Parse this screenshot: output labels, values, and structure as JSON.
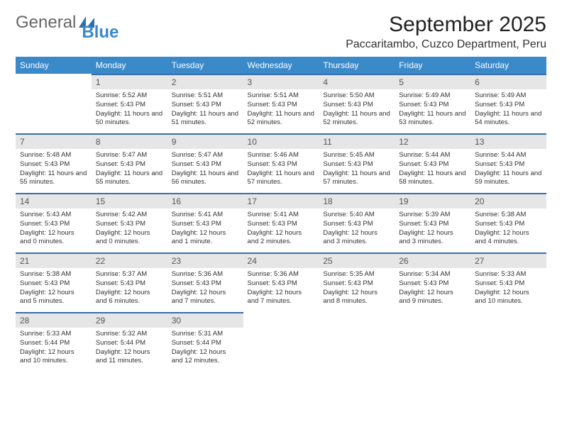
{
  "brand": {
    "part1": "General",
    "part2": "Blue"
  },
  "header": {
    "month_title": "September 2025",
    "location": "Paccaritambo, Cuzco Department, Peru"
  },
  "colors": {
    "header_bg": "#3a89c9",
    "daynum_bg": "#e6e6e6",
    "row_border": "#3a6ea8"
  },
  "weekdays": [
    "Sunday",
    "Monday",
    "Tuesday",
    "Wednesday",
    "Thursday",
    "Friday",
    "Saturday"
  ],
  "weeks": [
    [
      null,
      {
        "n": "1",
        "sunrise": "Sunrise: 5:52 AM",
        "sunset": "Sunset: 5:43 PM",
        "daylight": "Daylight: 11 hours and 50 minutes."
      },
      {
        "n": "2",
        "sunrise": "Sunrise: 5:51 AM",
        "sunset": "Sunset: 5:43 PM",
        "daylight": "Daylight: 11 hours and 51 minutes."
      },
      {
        "n": "3",
        "sunrise": "Sunrise: 5:51 AM",
        "sunset": "Sunset: 5:43 PM",
        "daylight": "Daylight: 11 hours and 52 minutes."
      },
      {
        "n": "4",
        "sunrise": "Sunrise: 5:50 AM",
        "sunset": "Sunset: 5:43 PM",
        "daylight": "Daylight: 11 hours and 52 minutes."
      },
      {
        "n": "5",
        "sunrise": "Sunrise: 5:49 AM",
        "sunset": "Sunset: 5:43 PM",
        "daylight": "Daylight: 11 hours and 53 minutes."
      },
      {
        "n": "6",
        "sunrise": "Sunrise: 5:49 AM",
        "sunset": "Sunset: 5:43 PM",
        "daylight": "Daylight: 11 hours and 54 minutes."
      }
    ],
    [
      {
        "n": "7",
        "sunrise": "Sunrise: 5:48 AM",
        "sunset": "Sunset: 5:43 PM",
        "daylight": "Daylight: 11 hours and 55 minutes."
      },
      {
        "n": "8",
        "sunrise": "Sunrise: 5:47 AM",
        "sunset": "Sunset: 5:43 PM",
        "daylight": "Daylight: 11 hours and 55 minutes."
      },
      {
        "n": "9",
        "sunrise": "Sunrise: 5:47 AM",
        "sunset": "Sunset: 5:43 PM",
        "daylight": "Daylight: 11 hours and 56 minutes."
      },
      {
        "n": "10",
        "sunrise": "Sunrise: 5:46 AM",
        "sunset": "Sunset: 5:43 PM",
        "daylight": "Daylight: 11 hours and 57 minutes."
      },
      {
        "n": "11",
        "sunrise": "Sunrise: 5:45 AM",
        "sunset": "Sunset: 5:43 PM",
        "daylight": "Daylight: 11 hours and 57 minutes."
      },
      {
        "n": "12",
        "sunrise": "Sunrise: 5:44 AM",
        "sunset": "Sunset: 5:43 PM",
        "daylight": "Daylight: 11 hours and 58 minutes."
      },
      {
        "n": "13",
        "sunrise": "Sunrise: 5:44 AM",
        "sunset": "Sunset: 5:43 PM",
        "daylight": "Daylight: 11 hours and 59 minutes."
      }
    ],
    [
      {
        "n": "14",
        "sunrise": "Sunrise: 5:43 AM",
        "sunset": "Sunset: 5:43 PM",
        "daylight": "Daylight: 12 hours and 0 minutes."
      },
      {
        "n": "15",
        "sunrise": "Sunrise: 5:42 AM",
        "sunset": "Sunset: 5:43 PM",
        "daylight": "Daylight: 12 hours and 0 minutes."
      },
      {
        "n": "16",
        "sunrise": "Sunrise: 5:41 AM",
        "sunset": "Sunset: 5:43 PM",
        "daylight": "Daylight: 12 hours and 1 minute."
      },
      {
        "n": "17",
        "sunrise": "Sunrise: 5:41 AM",
        "sunset": "Sunset: 5:43 PM",
        "daylight": "Daylight: 12 hours and 2 minutes."
      },
      {
        "n": "18",
        "sunrise": "Sunrise: 5:40 AM",
        "sunset": "Sunset: 5:43 PM",
        "daylight": "Daylight: 12 hours and 3 minutes."
      },
      {
        "n": "19",
        "sunrise": "Sunrise: 5:39 AM",
        "sunset": "Sunset: 5:43 PM",
        "daylight": "Daylight: 12 hours and 3 minutes."
      },
      {
        "n": "20",
        "sunrise": "Sunrise: 5:38 AM",
        "sunset": "Sunset: 5:43 PM",
        "daylight": "Daylight: 12 hours and 4 minutes."
      }
    ],
    [
      {
        "n": "21",
        "sunrise": "Sunrise: 5:38 AM",
        "sunset": "Sunset: 5:43 PM",
        "daylight": "Daylight: 12 hours and 5 minutes."
      },
      {
        "n": "22",
        "sunrise": "Sunrise: 5:37 AM",
        "sunset": "Sunset: 5:43 PM",
        "daylight": "Daylight: 12 hours and 6 minutes."
      },
      {
        "n": "23",
        "sunrise": "Sunrise: 5:36 AM",
        "sunset": "Sunset: 5:43 PM",
        "daylight": "Daylight: 12 hours and 7 minutes."
      },
      {
        "n": "24",
        "sunrise": "Sunrise: 5:36 AM",
        "sunset": "Sunset: 5:43 PM",
        "daylight": "Daylight: 12 hours and 7 minutes."
      },
      {
        "n": "25",
        "sunrise": "Sunrise: 5:35 AM",
        "sunset": "Sunset: 5:43 PM",
        "daylight": "Daylight: 12 hours and 8 minutes."
      },
      {
        "n": "26",
        "sunrise": "Sunrise: 5:34 AM",
        "sunset": "Sunset: 5:43 PM",
        "daylight": "Daylight: 12 hours and 9 minutes."
      },
      {
        "n": "27",
        "sunrise": "Sunrise: 5:33 AM",
        "sunset": "Sunset: 5:43 PM",
        "daylight": "Daylight: 12 hours and 10 minutes."
      }
    ],
    [
      {
        "n": "28",
        "sunrise": "Sunrise: 5:33 AM",
        "sunset": "Sunset: 5:44 PM",
        "daylight": "Daylight: 12 hours and 10 minutes."
      },
      {
        "n": "29",
        "sunrise": "Sunrise: 5:32 AM",
        "sunset": "Sunset: 5:44 PM",
        "daylight": "Daylight: 12 hours and 11 minutes."
      },
      {
        "n": "30",
        "sunrise": "Sunrise: 5:31 AM",
        "sunset": "Sunset: 5:44 PM",
        "daylight": "Daylight: 12 hours and 12 minutes."
      },
      null,
      null,
      null,
      null
    ]
  ]
}
